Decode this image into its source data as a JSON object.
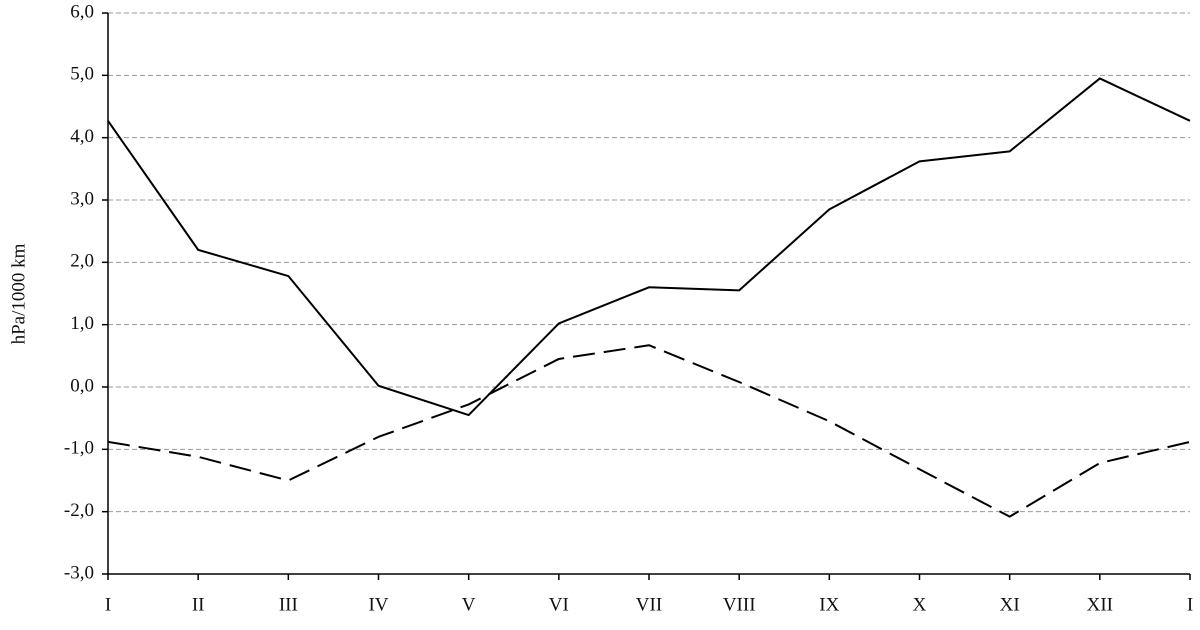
{
  "chart_data": {
    "type": "line",
    "y_label": "hPa/1000 km",
    "categories": [
      "I",
      "II",
      "III",
      "IV",
      "V",
      "VI",
      "VII",
      "VIII",
      "IX",
      "X",
      "XI",
      "XII",
      "I"
    ],
    "series": [
      {
        "color": "#000000",
        "dash": "solid",
        "values": [
          4.27,
          2.2,
          1.78,
          0.02,
          -0.45,
          1.02,
          1.6,
          1.55,
          2.85,
          3.62,
          3.78,
          4.95,
          4.27
        ]
      },
      {
        "color": "#000000",
        "dash": "dashed",
        "values": [
          -0.88,
          -1.12,
          -1.5,
          -0.8,
          -0.28,
          0.45,
          0.67,
          0.08,
          -0.55,
          -1.32,
          -2.08,
          -1.22,
          -0.88
        ]
      }
    ],
    "ylim": [
      -3,
      6
    ],
    "yticks": [
      {
        "value": -3,
        "label": "-3,0"
      },
      {
        "value": -2,
        "label": "-2,0"
      },
      {
        "value": -1,
        "label": "-1,0"
      },
      {
        "value": 0,
        "label": "0,0"
      },
      {
        "value": 1,
        "label": "1,0"
      },
      {
        "value": 2,
        "label": "2,0"
      },
      {
        "value": 3,
        "label": "3,0"
      },
      {
        "value": 4,
        "label": "4,0"
      },
      {
        "value": 5,
        "label": "5,0"
      },
      {
        "value": 6,
        "label": "6,0"
      }
    ],
    "grid": true
  }
}
